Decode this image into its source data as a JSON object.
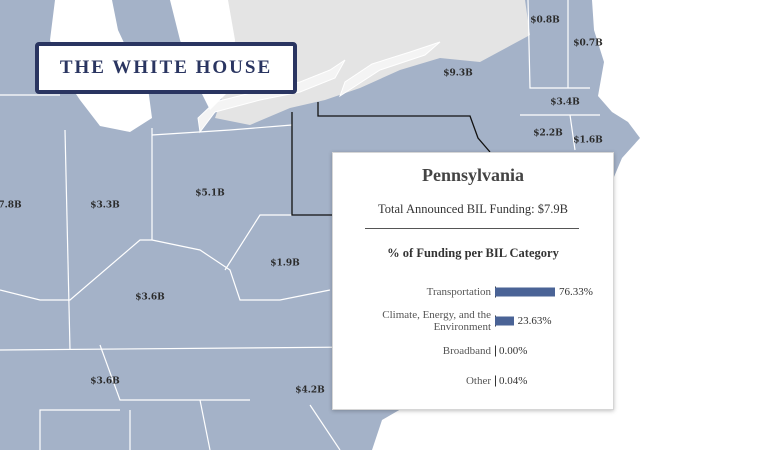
{
  "logo": "THE WHITE HOUSE",
  "map": {
    "labels": [
      "$0.8B",
      "$0.7B",
      "$9.3B",
      "$3.4B",
      "$2.2B",
      "$1.6B",
      "7.8B",
      "$3.3B",
      "$5.1B",
      "$1.9B",
      "$3.6B",
      "$3.6B",
      "$4.2B"
    ]
  },
  "tooltip": {
    "title": "Pennsylvania",
    "total": "Total Announced BIL Funding: $7.9B",
    "subtitle": "% of Funding per BIL Category",
    "categories": [
      "Transportation",
      "Climate, Energy, and the Environment",
      "Broadband",
      "Other"
    ],
    "values": [
      76.33,
      23.63,
      0,
      0.04
    ],
    "value_labels": [
      "76.33%",
      "23.63%",
      "0.00%",
      "0.04%"
    ],
    "color": "#4a6396"
  }
}
